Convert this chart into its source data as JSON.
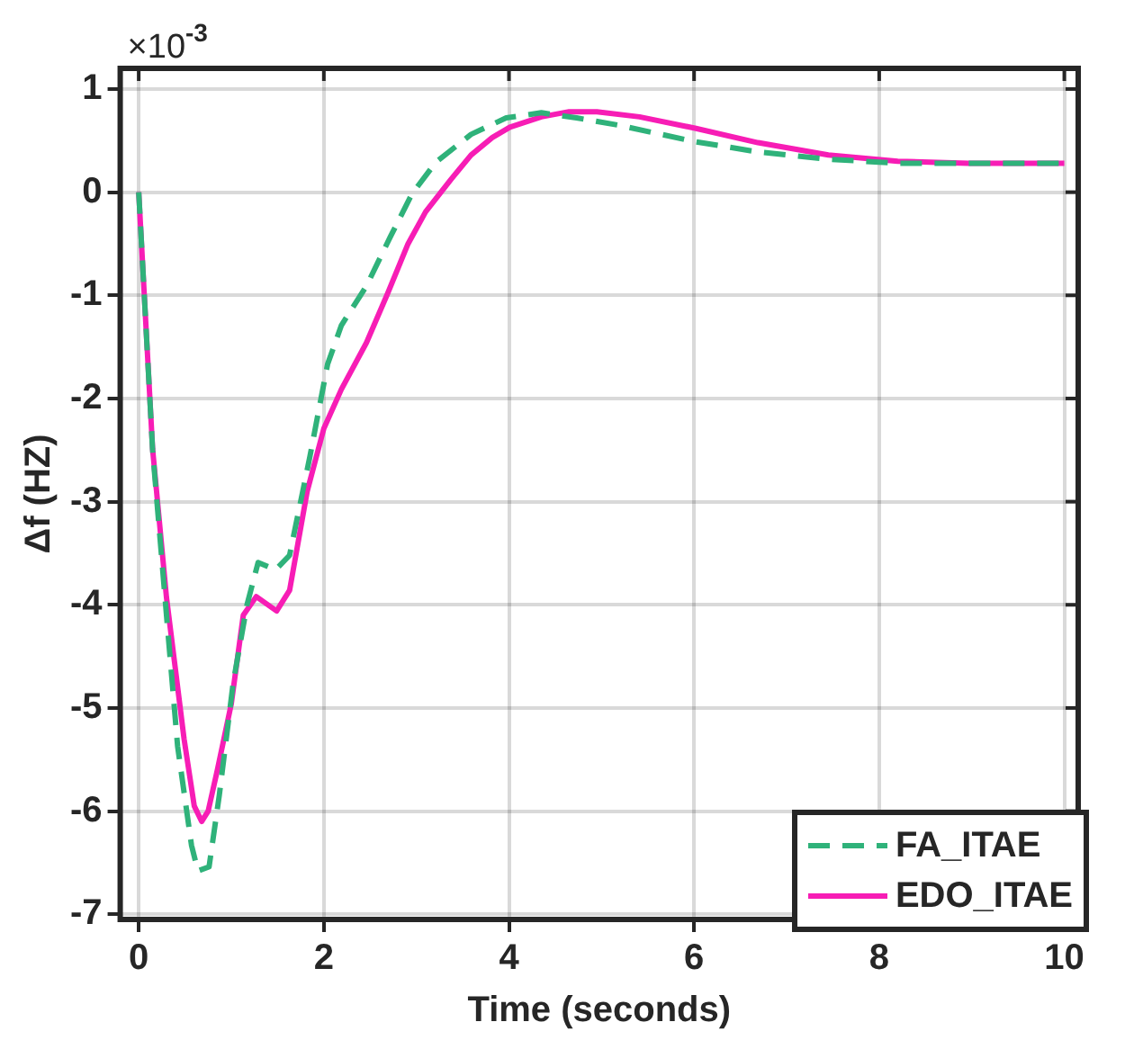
{
  "chart_data": {
    "type": "line",
    "xlabel": "Time (seconds)",
    "ylabel": "Δf (HZ)",
    "annotations": [
      "×10$^{-3}$"
    ],
    "xlim": [
      -0.2,
      10.15
    ],
    "xticks": [
      0,
      2,
      4,
      6,
      8,
      10
    ],
    "ylim": [
      -7.05,
      1.2
    ],
    "yticks": [
      -7,
      -6,
      -5,
      -4,
      -3,
      -2,
      -1,
      0,
      1
    ],
    "grid": true,
    "legend": "bottom right",
    "marker": "none",
    "series": [
      {
        "name": "FA_ITAE",
        "color": "#2fb27a",
        "line_style": "dashed",
        "x": [
          0,
          0.15,
          0.3,
          0.42,
          0.57,
          0.64,
          0.76,
          0.87,
          1.02,
          1.17,
          1.29,
          1.48,
          1.63,
          1.85,
          2.04,
          2.19,
          2.46,
          2.72,
          2.95,
          3.21,
          3.59,
          3.97,
          4.35,
          4.73,
          5.18,
          6.01,
          6.69,
          7.45,
          8.2,
          10
        ],
        "values": [
          0,
          -2.5,
          -4.1,
          -5.37,
          -6.33,
          -6.58,
          -6.54,
          -5.85,
          -4.76,
          -4.0,
          -3.59,
          -3.66,
          -3.52,
          -2.56,
          -1.67,
          -1.29,
          -0.91,
          -0.43,
          -0.02,
          0.29,
          0.56,
          0.72,
          0.77,
          0.72,
          0.65,
          0.49,
          0.39,
          0.32,
          0.28,
          0.28
        ]
      },
      {
        "name": "EDO_ITAE",
        "color": "#f71db5",
        "line_style": "solid",
        "x": [
          0,
          0.15,
          0.3,
          0.49,
          0.6,
          0.68,
          0.75,
          0.85,
          1.0,
          1.13,
          1.27,
          1.49,
          1.63,
          1.82,
          2.0,
          2.19,
          2.46,
          2.69,
          2.91,
          3.1,
          3.37,
          3.59,
          3.82,
          4.01,
          4.35,
          4.65,
          4.95,
          5.41,
          6.01,
          6.69,
          7.45,
          8.2,
          8.96,
          10
        ],
        "values": [
          0,
          -2.49,
          -3.93,
          -5.3,
          -5.95,
          -6.1,
          -6.0,
          -5.6,
          -4.96,
          -4.1,
          -3.92,
          -4.06,
          -3.86,
          -2.9,
          -2.29,
          -1.91,
          -1.46,
          -0.98,
          -0.5,
          -0.19,
          0.12,
          0.36,
          0.53,
          0.63,
          0.73,
          0.78,
          0.78,
          0.73,
          0.62,
          0.48,
          0.36,
          0.3,
          0.28,
          0.28
        ]
      }
    ]
  }
}
